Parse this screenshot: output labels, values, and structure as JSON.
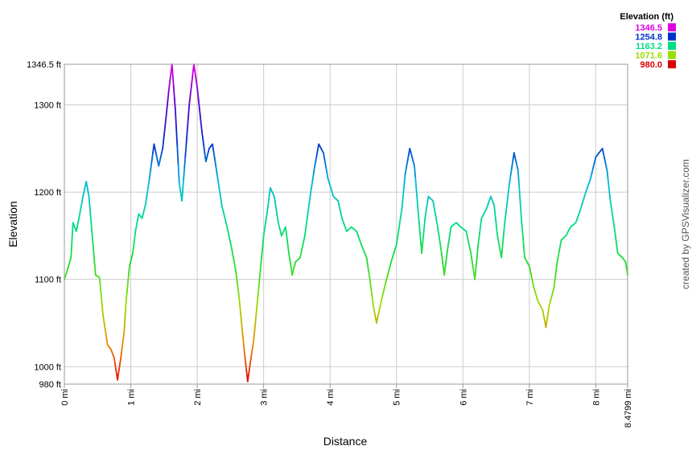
{
  "chart_data": {
    "type": "line",
    "xlabel": "Distance",
    "ylabel": "Elevation",
    "xlim": [
      0,
      8.4799
    ],
    "ylim": [
      980,
      1346.5
    ],
    "grid": true,
    "x_ticks": [
      0,
      1,
      2,
      3,
      4,
      5,
      6,
      7,
      8,
      8.4799
    ],
    "x_tick_labels": [
      "0 mi",
      "1 mi",
      "2 mi",
      "3 mi",
      "4 mi",
      "5 mi",
      "6 mi",
      "7 mi",
      "8 mi",
      "8.4799 mi"
    ],
    "y_ticks": [
      980,
      1000,
      1100,
      1200,
      1300,
      1346.5
    ],
    "y_tick_labels": [
      "980 ft",
      "1000 ft",
      "1100 ft",
      "1200 ft",
      "1300 ft",
      "1346.5 ft"
    ],
    "legend": {
      "title": "Elevation (ft)",
      "position": "top-right",
      "entries": [
        {
          "label": "1346.5",
          "color": "#e000e0"
        },
        {
          "label": "1254.8",
          "color": "#0033cc"
        },
        {
          "label": "1163.2",
          "color": "#00dd88"
        },
        {
          "label": "1071.6",
          "color": "#99dd00"
        },
        {
          "label": "980.0",
          "color": "#dd0000"
        }
      ]
    },
    "color_scale": [
      {
        "value": 980,
        "color": "#dd0000"
      },
      {
        "value": 1025,
        "color": "#ee8800"
      },
      {
        "value": 1071.6,
        "color": "#99dd00"
      },
      {
        "value": 1120,
        "color": "#22dd33"
      },
      {
        "value": 1163.2,
        "color": "#00dd88"
      },
      {
        "value": 1210,
        "color": "#00bbdd"
      },
      {
        "value": 1254.8,
        "color": "#0033cc"
      },
      {
        "value": 1300,
        "color": "#5500cc"
      },
      {
        "value": 1346.5,
        "color": "#e000e0"
      }
    ],
    "series": [
      {
        "points": [
          [
            0,
            1100
          ],
          [
            0.05,
            1112
          ],
          [
            0.1,
            1125
          ],
          [
            0.13,
            1165
          ],
          [
            0.18,
            1155
          ],
          [
            0.22,
            1170
          ],
          [
            0.28,
            1195
          ],
          [
            0.33,
            1212
          ],
          [
            0.37,
            1195
          ],
          [
            0.42,
            1150
          ],
          [
            0.47,
            1105
          ],
          [
            0.53,
            1102
          ],
          [
            0.58,
            1060
          ],
          [
            0.65,
            1025
          ],
          [
            0.7,
            1020
          ],
          [
            0.75,
            1010
          ],
          [
            0.8,
            985
          ],
          [
            0.85,
            1010
          ],
          [
            0.9,
            1040
          ],
          [
            0.93,
            1075
          ],
          [
            0.98,
            1115
          ],
          [
            1.03,
            1130
          ],
          [
            1.07,
            1155
          ],
          [
            1.12,
            1175
          ],
          [
            1.17,
            1170
          ],
          [
            1.22,
            1185
          ],
          [
            1.28,
            1215
          ],
          [
            1.35,
            1255
          ],
          [
            1.42,
            1230
          ],
          [
            1.48,
            1250
          ],
          [
            1.53,
            1285
          ],
          [
            1.57,
            1315
          ],
          [
            1.62,
            1346.5
          ],
          [
            1.67,
            1295
          ],
          [
            1.73,
            1210
          ],
          [
            1.77,
            1190
          ],
          [
            1.82,
            1240
          ],
          [
            1.88,
            1300
          ],
          [
            1.95,
            1346.5
          ],
          [
            2.0,
            1320
          ],
          [
            2.07,
            1270
          ],
          [
            2.13,
            1235
          ],
          [
            2.18,
            1250
          ],
          [
            2.23,
            1255
          ],
          [
            2.3,
            1220
          ],
          [
            2.37,
            1185
          ],
          [
            2.45,
            1160
          ],
          [
            2.52,
            1135
          ],
          [
            2.58,
            1110
          ],
          [
            2.63,
            1080
          ],
          [
            2.68,
            1040
          ],
          [
            2.72,
            1010
          ],
          [
            2.76,
            983
          ],
          [
            2.8,
            1005
          ],
          [
            2.85,
            1030
          ],
          [
            2.9,
            1070
          ],
          [
            2.95,
            1110
          ],
          [
            3.0,
            1150
          ],
          [
            3.05,
            1175
          ],
          [
            3.1,
            1205
          ],
          [
            3.16,
            1195
          ],
          [
            3.22,
            1165
          ],
          [
            3.27,
            1150
          ],
          [
            3.33,
            1160
          ],
          [
            3.38,
            1130
          ],
          [
            3.43,
            1105
          ],
          [
            3.48,
            1120
          ],
          [
            3.55,
            1125
          ],
          [
            3.62,
            1150
          ],
          [
            3.7,
            1195
          ],
          [
            3.77,
            1230
          ],
          [
            3.83,
            1255
          ],
          [
            3.9,
            1245
          ],
          [
            3.97,
            1215
          ],
          [
            4.05,
            1195
          ],
          [
            4.12,
            1190
          ],
          [
            4.18,
            1170
          ],
          [
            4.25,
            1155
          ],
          [
            4.32,
            1160
          ],
          [
            4.4,
            1155
          ],
          [
            4.47,
            1140
          ],
          [
            4.55,
            1125
          ],
          [
            4.6,
            1100
          ],
          [
            4.65,
            1070
          ],
          [
            4.7,
            1050
          ],
          [
            4.77,
            1075
          ],
          [
            4.85,
            1100
          ],
          [
            4.92,
            1120
          ],
          [
            5.0,
            1140
          ],
          [
            5.08,
            1180
          ],
          [
            5.13,
            1220
          ],
          [
            5.2,
            1250
          ],
          [
            5.27,
            1230
          ],
          [
            5.33,
            1175
          ],
          [
            5.38,
            1130
          ],
          [
            5.43,
            1170
          ],
          [
            5.48,
            1195
          ],
          [
            5.55,
            1190
          ],
          [
            5.62,
            1160
          ],
          [
            5.67,
            1135
          ],
          [
            5.72,
            1105
          ],
          [
            5.77,
            1135
          ],
          [
            5.82,
            1160
          ],
          [
            5.9,
            1165
          ],
          [
            5.97,
            1160
          ],
          [
            6.05,
            1155
          ],
          [
            6.12,
            1130
          ],
          [
            6.18,
            1100
          ],
          [
            6.23,
            1140
          ],
          [
            6.28,
            1170
          ],
          [
            6.35,
            1180
          ],
          [
            6.42,
            1195
          ],
          [
            6.47,
            1185
          ],
          [
            6.52,
            1150
          ],
          [
            6.58,
            1125
          ],
          [
            6.63,
            1165
          ],
          [
            6.7,
            1210
          ],
          [
            6.77,
            1245
          ],
          [
            6.83,
            1225
          ],
          [
            6.88,
            1170
          ],
          [
            6.93,
            1125
          ],
          [
            7.0,
            1115
          ],
          [
            7.07,
            1090
          ],
          [
            7.13,
            1075
          ],
          [
            7.2,
            1065
          ],
          [
            7.25,
            1045
          ],
          [
            7.3,
            1070
          ],
          [
            7.37,
            1090
          ],
          [
            7.42,
            1120
          ],
          [
            7.48,
            1145
          ],
          [
            7.55,
            1150
          ],
          [
            7.62,
            1160
          ],
          [
            7.7,
            1165
          ],
          [
            7.77,
            1180
          ],
          [
            7.85,
            1200
          ],
          [
            7.92,
            1215
          ],
          [
            8.0,
            1240
          ],
          [
            8.1,
            1250
          ],
          [
            8.17,
            1225
          ],
          [
            8.22,
            1190
          ],
          [
            8.28,
            1160
          ],
          [
            8.33,
            1130
          ],
          [
            8.4,
            1125
          ],
          [
            8.45,
            1120
          ],
          [
            8.4799,
            1105
          ]
        ]
      }
    ]
  },
  "credit": "created by GPSVisualizer.com"
}
